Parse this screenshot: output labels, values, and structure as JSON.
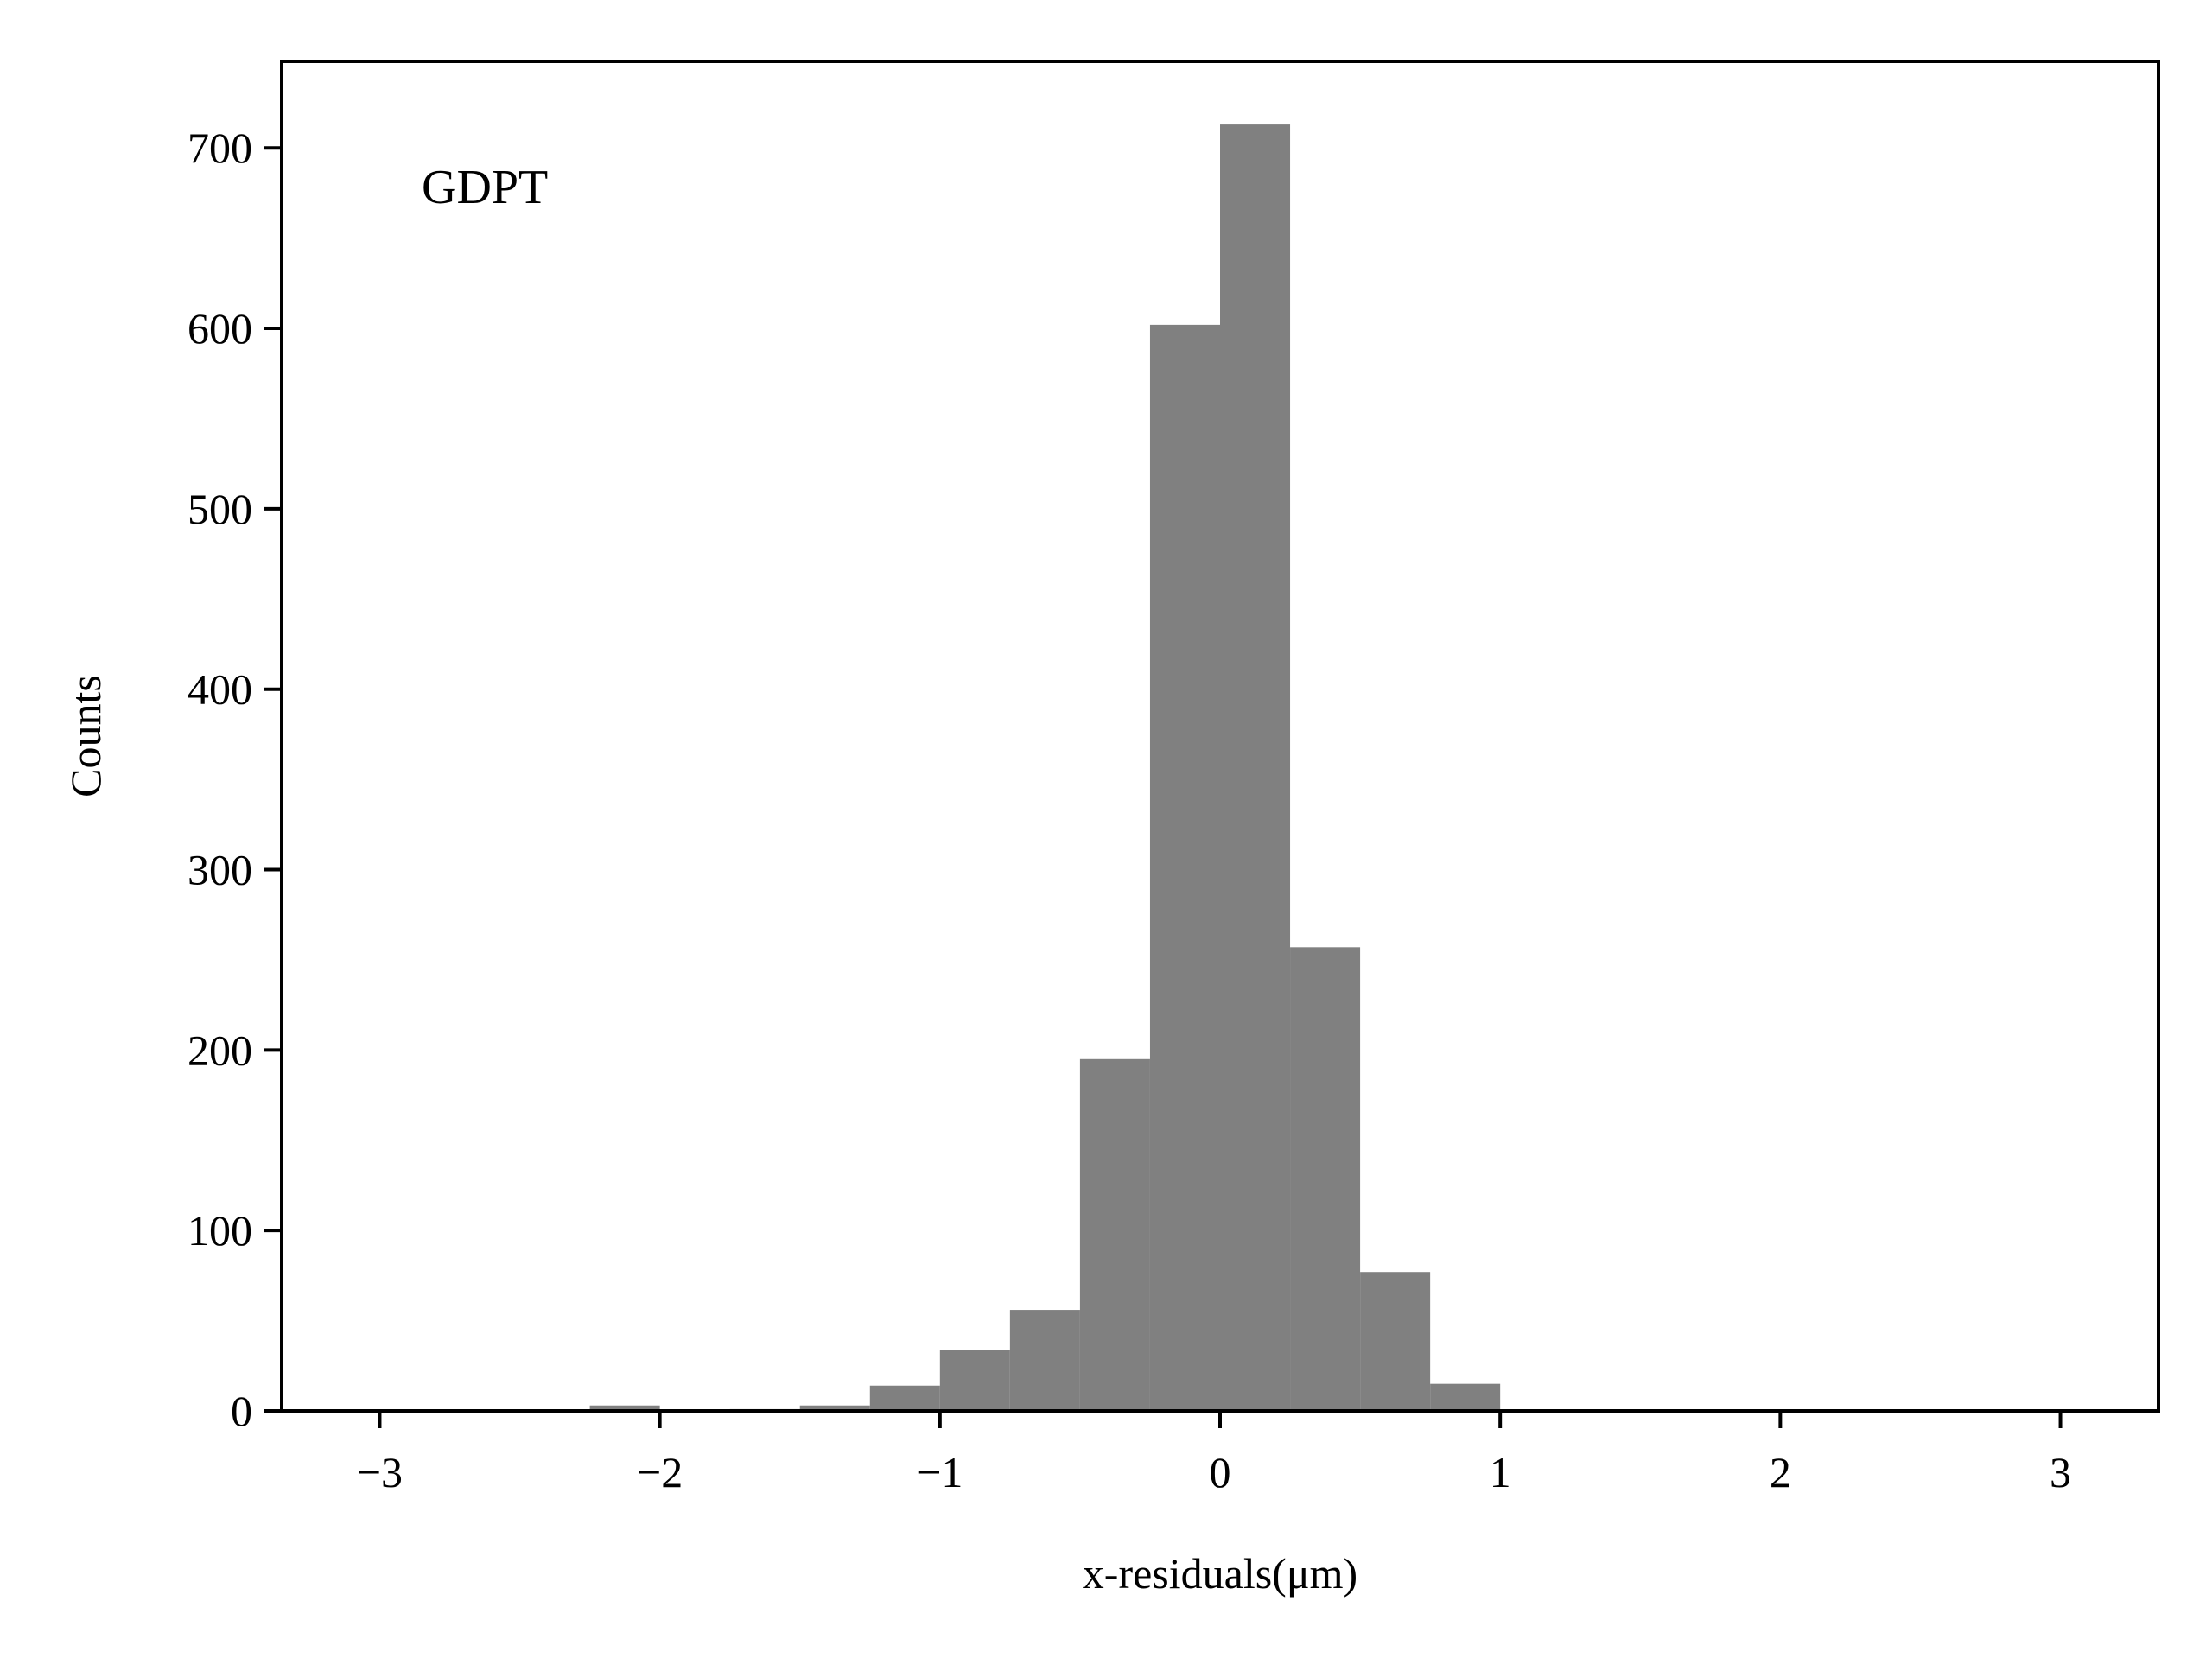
{
  "chart_data": {
    "type": "bar",
    "title": "",
    "xlabel": "x-residuals(μm)",
    "ylabel": "Counts",
    "annotation": "GDPT",
    "xlim": [
      -3.35,
      3.35
    ],
    "ylim": [
      0,
      748
    ],
    "xticks": [
      -3,
      -2,
      -1,
      0,
      1,
      2,
      3
    ],
    "xtick_labels": [
      "−3",
      "−2",
      "−1",
      "0",
      "1",
      "2",
      "3"
    ],
    "yticks": [
      0,
      100,
      200,
      300,
      400,
      500,
      600,
      700
    ],
    "ytick_labels": [
      "0",
      "100",
      "200",
      "300",
      "400",
      "500",
      "600",
      "700"
    ],
    "bin_width": 0.25,
    "bins": [
      {
        "x0": -2.25,
        "x1": -2.0,
        "value": 3
      },
      {
        "x0": -2.0,
        "x1": -1.75,
        "value": 0
      },
      {
        "x0": -1.75,
        "x1": -1.5,
        "value": 1
      },
      {
        "x0": -1.5,
        "x1": -1.25,
        "value": 3
      },
      {
        "x0": -1.25,
        "x1": -1.0,
        "value": 14
      },
      {
        "x0": -1.0,
        "x1": -0.75,
        "value": 34
      },
      {
        "x0": -0.75,
        "x1": -0.5,
        "value": 56
      },
      {
        "x0": -0.5,
        "x1": -0.25,
        "value": 195
      },
      {
        "x0": -0.25,
        "x1": 0.0,
        "value": 602
      },
      {
        "x0": 0.0,
        "x1": 0.25,
        "value": 713
      },
      {
        "x0": 0.25,
        "x1": 0.5,
        "value": 257
      },
      {
        "x0": 0.5,
        "x1": 0.75,
        "value": 77
      },
      {
        "x0": 0.75,
        "x1": 1.0,
        "value": 15
      }
    ],
    "bar_color": "#808080",
    "grid": false,
    "legend": "none"
  }
}
